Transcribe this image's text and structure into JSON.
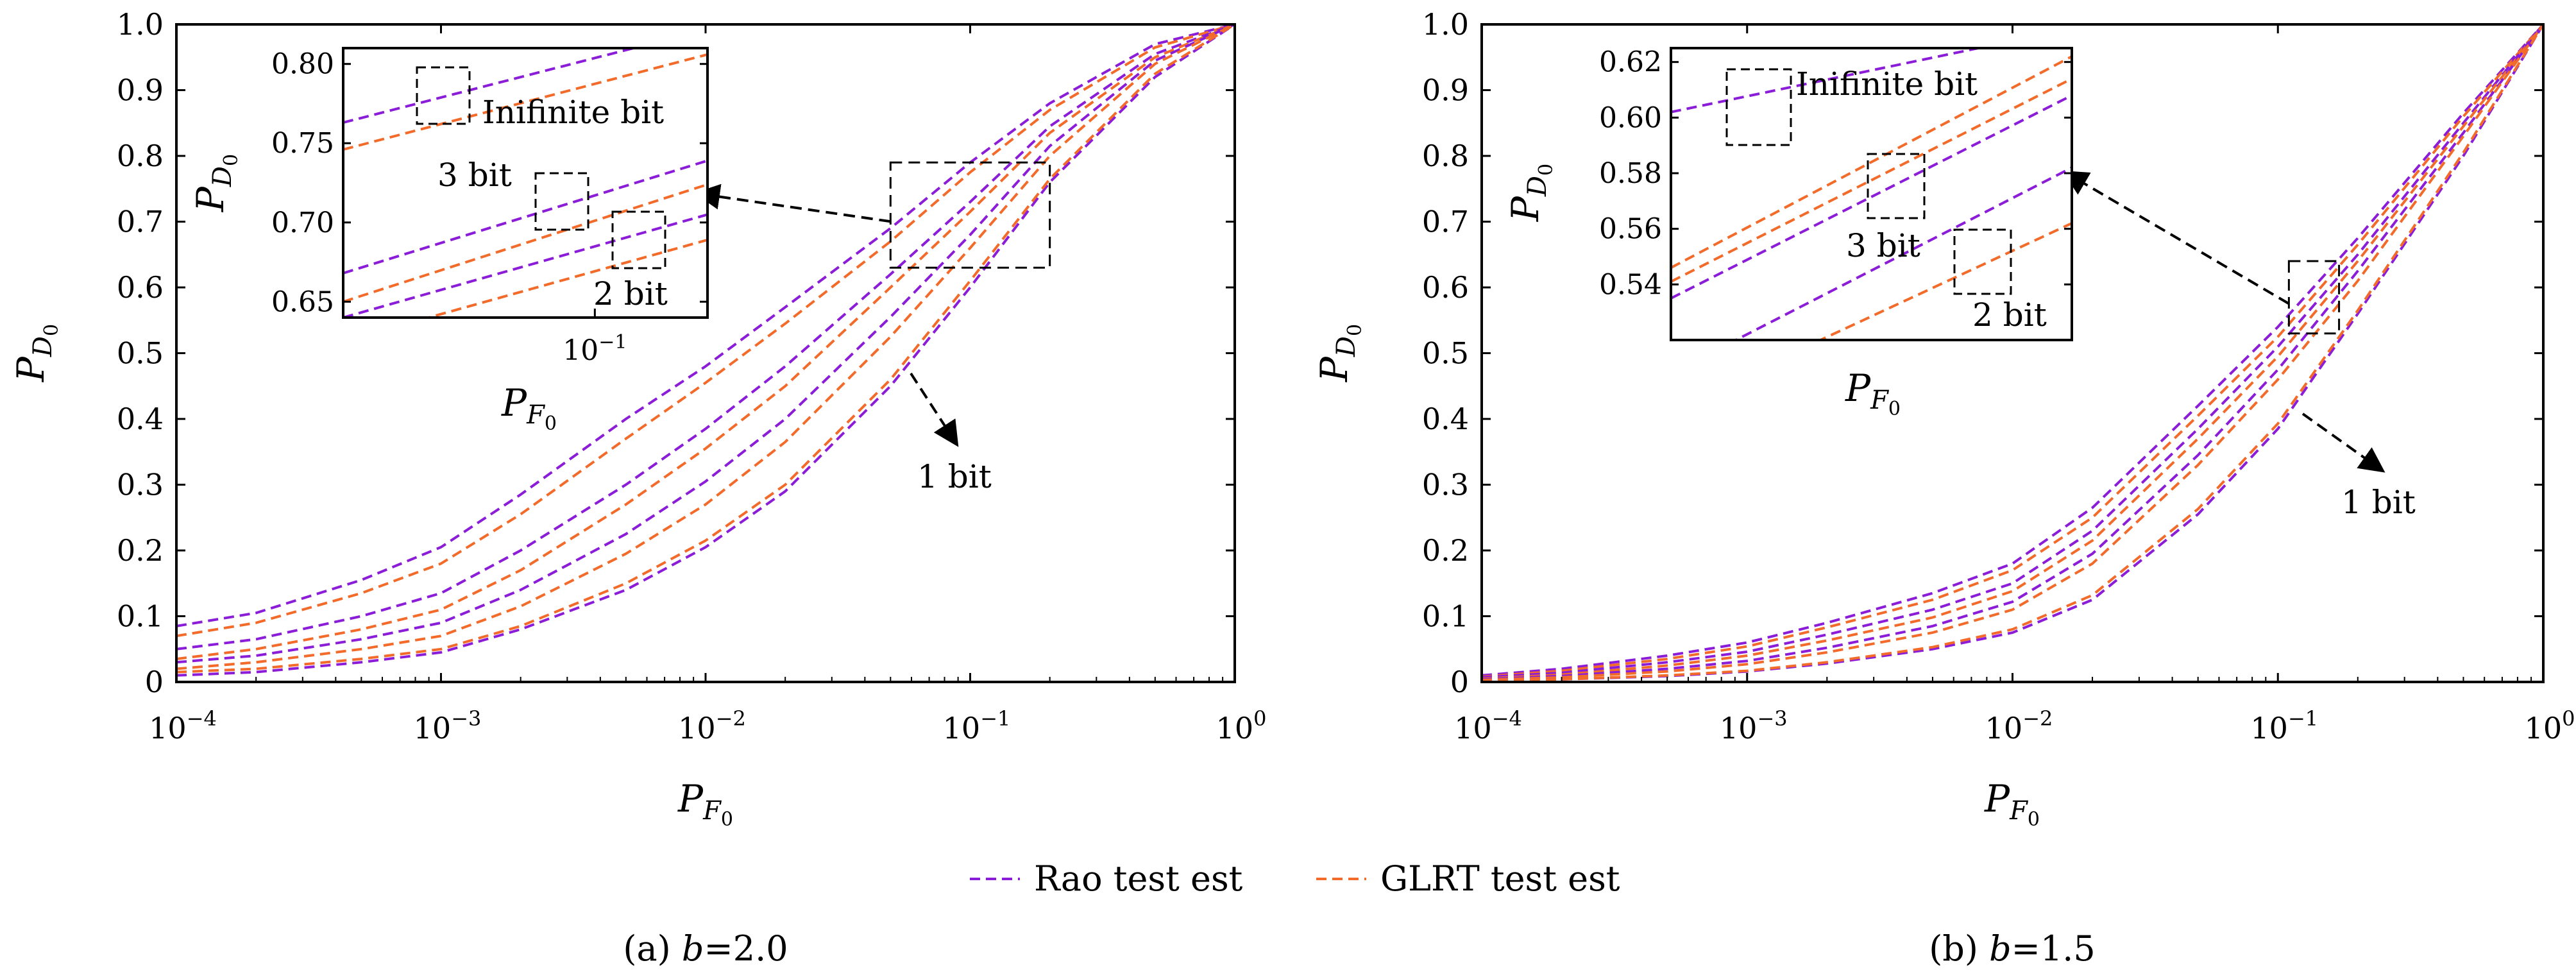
{
  "colors": {
    "rao": "#8b1cd8",
    "glrt": "#f26b2a",
    "frame": "#000000"
  },
  "legend": {
    "position": "bottom-center",
    "entries": [
      {
        "label": "Rao test est",
        "color": "#8b1cd8",
        "style": "dashed"
      },
      {
        "label": "GLRT test est",
        "color": "#f26b2a",
        "style": "dashed"
      }
    ]
  },
  "chart_data": [
    {
      "type": "line",
      "caption": "(a) b=2.0",
      "caption_prefix": "(a) ",
      "caption_var": "b",
      "caption_value": "=2.0",
      "xscale": "log",
      "xlim": [
        0.0001,
        1
      ],
      "ylim": [
        0,
        1
      ],
      "xlabel": {
        "main": "P",
        "sub": "F",
        "subsub": "0"
      },
      "ylabel": {
        "main": "P",
        "sub": "D",
        "subsub": "0"
      },
      "xticks": [
        {
          "v": 0.0001,
          "base": "10",
          "exp": "−4"
        },
        {
          "v": 0.001,
          "base": "10",
          "exp": "−3"
        },
        {
          "v": 0.01,
          "base": "10",
          "exp": "−2"
        },
        {
          "v": 0.1,
          "base": "10",
          "exp": "−1"
        },
        {
          "v": 1,
          "base": "10",
          "exp": "0"
        }
      ],
      "yticks": [
        "0",
        "0.1",
        "0.2",
        "0.3",
        "0.4",
        "0.5",
        "0.6",
        "0.7",
        "0.8",
        "0.9",
        "1.0"
      ],
      "x": [
        0.0001,
        0.0002,
        0.0005,
        0.001,
        0.002,
        0.005,
        0.01,
        0.02,
        0.05,
        0.1,
        0.2,
        0.5,
        1
      ],
      "series": [
        {
          "group": "rao",
          "bit": "Infinite",
          "values": [
            0.085,
            0.105,
            0.155,
            0.205,
            0.285,
            0.4,
            0.48,
            0.57,
            0.69,
            0.79,
            0.88,
            0.97,
            1.0
          ]
        },
        {
          "group": "glrt",
          "bit": "Infinite",
          "values": [
            0.07,
            0.09,
            0.135,
            0.18,
            0.255,
            0.37,
            0.455,
            0.545,
            0.67,
            0.775,
            0.87,
            0.965,
            1.0
          ]
        },
        {
          "group": "rao",
          "bit": "3",
          "values": [
            0.05,
            0.065,
            0.1,
            0.135,
            0.2,
            0.3,
            0.385,
            0.48,
            0.62,
            0.73,
            0.845,
            0.955,
            1.0
          ]
        },
        {
          "group": "glrt",
          "bit": "3",
          "values": [
            0.035,
            0.05,
            0.08,
            0.11,
            0.17,
            0.27,
            0.355,
            0.45,
            0.6,
            0.715,
            0.835,
            0.95,
            1.0
          ]
        },
        {
          "group": "rao",
          "bit": "2",
          "values": [
            0.03,
            0.04,
            0.065,
            0.09,
            0.14,
            0.225,
            0.305,
            0.4,
            0.555,
            0.68,
            0.815,
            0.945,
            1.0
          ]
        },
        {
          "group": "glrt",
          "bit": "2",
          "values": [
            0.02,
            0.03,
            0.05,
            0.07,
            0.115,
            0.195,
            0.27,
            0.365,
            0.525,
            0.66,
            0.8,
            0.94,
            1.0
          ]
        },
        {
          "group": "rao",
          "bit": "1",
          "values": [
            0.01,
            0.015,
            0.03,
            0.045,
            0.08,
            0.14,
            0.205,
            0.29,
            0.45,
            0.6,
            0.76,
            0.92,
            1.0
          ]
        },
        {
          "group": "glrt",
          "bit": "1",
          "values": [
            0.015,
            0.02,
            0.035,
            0.05,
            0.085,
            0.15,
            0.215,
            0.3,
            0.46,
            0.61,
            0.765,
            0.925,
            1.0
          ]
        }
      ],
      "zoom_box": {
        "xlim": [
          0.05,
          0.2
        ],
        "ylim": [
          0.63,
          0.79
        ]
      },
      "inset": {
        "xlim": [
          0.035,
          0.16
        ],
        "ylim": [
          0.64,
          0.81
        ],
        "yticks": [
          "0.65",
          "0.70",
          "0.75",
          "0.80"
        ],
        "ytick_values": [
          0.65,
          0.7,
          0.75,
          0.8
        ],
        "xtick": {
          "v": 0.1,
          "base": "10",
          "exp": "−1"
        },
        "xlabel": {
          "main": "P",
          "sub": "F",
          "subsub": "0"
        },
        "ylabel": {
          "main": "P",
          "sub": "D",
          "subsub": "0"
        },
        "series": [
          {
            "group": "rao",
            "x": [
              0.035,
              0.16
            ],
            "y": [
              0.763,
              0.822
            ]
          },
          {
            "group": "glrt",
            "x": [
              0.035,
              0.16
            ],
            "y": [
              0.746,
              0.806
            ]
          },
          {
            "group": "rao",
            "x": [
              0.035,
              0.16
            ],
            "y": [
              0.668,
              0.739
            ]
          },
          {
            "group": "glrt",
            "x": [
              0.035,
              0.16
            ],
            "y": [
              0.65,
              0.724
            ]
          },
          {
            "group": "rao",
            "x": [
              0.035,
              0.16
            ],
            "y": [
              0.64,
              0.705
            ]
          },
          {
            "group": "glrt",
            "x": [
              0.035,
              0.16
            ],
            "y": [
              0.625,
              0.689
            ]
          }
        ],
        "annotations": [
          {
            "text": "Inifinite bit"
          },
          {
            "text": "3 bit"
          },
          {
            "text": "2 bit"
          }
        ]
      },
      "annotations": [
        {
          "text": "1 bit"
        }
      ]
    },
    {
      "type": "line",
      "caption": "(b) b=1.5",
      "caption_prefix": "(b) ",
      "caption_var": "b",
      "caption_value": "=1.5",
      "xscale": "log",
      "xlim": [
        0.0001,
        1
      ],
      "ylim": [
        0,
        1
      ],
      "xlabel": {
        "main": "P",
        "sub": "F",
        "subsub": "0"
      },
      "ylabel": {
        "main": "P",
        "sub": "D",
        "subsub": "0"
      },
      "xticks": [
        {
          "v": 0.0001,
          "base": "10",
          "exp": "−4"
        },
        {
          "v": 0.001,
          "base": "10",
          "exp": "−3"
        },
        {
          "v": 0.01,
          "base": "10",
          "exp": "−2"
        },
        {
          "v": 0.1,
          "base": "10",
          "exp": "−1"
        },
        {
          "v": 1,
          "base": "10",
          "exp": "0"
        }
      ],
      "yticks": [
        "0",
        "0.1",
        "0.2",
        "0.3",
        "0.4",
        "0.5",
        "0.6",
        "0.7",
        "0.8",
        "0.9",
        "1.0"
      ],
      "x": [
        0.0001,
        0.0002,
        0.0005,
        0.001,
        0.002,
        0.005,
        0.01,
        0.02,
        0.05,
        0.1,
        0.2,
        0.5,
        1
      ],
      "series": [
        {
          "group": "rao",
          "bit": "Infinite",
          "values": [
            0.01,
            0.02,
            0.04,
            0.06,
            0.09,
            0.135,
            0.18,
            0.265,
            0.42,
            0.54,
            0.675,
            0.865,
            1.0
          ]
        },
        {
          "group": "glrt",
          "bit": "Infinite",
          "values": [
            0.008,
            0.017,
            0.035,
            0.054,
            0.083,
            0.125,
            0.17,
            0.25,
            0.405,
            0.525,
            0.665,
            0.86,
            1.0
          ]
        },
        {
          "group": "rao",
          "bit": "3",
          "values": [
            0.007,
            0.014,
            0.03,
            0.046,
            0.072,
            0.11,
            0.15,
            0.23,
            0.385,
            0.51,
            0.65,
            0.85,
            1.0
          ]
        },
        {
          "group": "glrt",
          "bit": "3",
          "values": [
            0.005,
            0.011,
            0.025,
            0.04,
            0.063,
            0.098,
            0.138,
            0.215,
            0.37,
            0.495,
            0.64,
            0.845,
            1.0
          ]
        },
        {
          "group": "rao",
          "bit": "2",
          "values": [
            0.004,
            0.009,
            0.02,
            0.032,
            0.052,
            0.085,
            0.122,
            0.195,
            0.345,
            0.475,
            0.625,
            0.835,
            1.0
          ]
        },
        {
          "group": "glrt",
          "bit": "2",
          "values": [
            0.003,
            0.007,
            0.016,
            0.027,
            0.045,
            0.075,
            0.11,
            0.18,
            0.33,
            0.46,
            0.61,
            0.83,
            1.0
          ]
        },
        {
          "group": "rao",
          "bit": "1",
          "values": [
            0.002,
            0.004,
            0.009,
            0.016,
            0.028,
            0.05,
            0.075,
            0.125,
            0.255,
            0.385,
            0.56,
            0.8,
            1.0
          ]
        },
        {
          "group": "glrt",
          "bit": "1",
          "values": [
            0.002,
            0.004,
            0.01,
            0.017,
            0.03,
            0.053,
            0.08,
            0.132,
            0.263,
            0.393,
            0.565,
            0.805,
            1.0
          ]
        }
      ],
      "zoom_box": {
        "xlim": [
          0.11,
          0.17
        ],
        "ylim": [
          0.53,
          0.64
        ]
      },
      "inset": {
        "xlim": [
          0.09,
          0.2
        ],
        "ylim": [
          0.52,
          0.625
        ],
        "yticks": [
          "0.54",
          "0.56",
          "0.58",
          "0.60",
          "0.62"
        ],
        "ytick_values": [
          0.54,
          0.56,
          0.58,
          0.6,
          0.62
        ],
        "xlabel": {
          "main": "P",
          "sub": "F",
          "subsub": "0"
        },
        "ylabel": {
          "main": "P",
          "sub": "D",
          "subsub": "0"
        },
        "series": [
          {
            "group": "rao",
            "x": [
              0.09,
              0.2
            ],
            "y": [
              0.602,
              0.632
            ]
          },
          {
            "group": "glrt",
            "x": [
              0.09,
              0.2
            ],
            "y": [
              0.546,
              0.622
            ]
          },
          {
            "group": "glrt",
            "x": [
              0.09,
              0.2
            ],
            "y": [
              0.541,
              0.614
            ]
          },
          {
            "group": "rao",
            "x": [
              0.09,
              0.2
            ],
            "y": [
              0.535,
              0.608
            ]
          },
          {
            "group": "rao",
            "x": [
              0.09,
              0.2
            ],
            "y": [
              0.508,
              0.582
            ]
          },
          {
            "group": "glrt",
            "x": [
              0.09,
              0.2
            ],
            "y": [
              0.495,
              0.562
            ]
          }
        ],
        "annotations": [
          {
            "text": "Inifinite bit"
          },
          {
            "text": "3 bit"
          },
          {
            "text": "2 bit"
          }
        ]
      },
      "annotations": [
        {
          "text": "1 bit"
        }
      ]
    }
  ]
}
